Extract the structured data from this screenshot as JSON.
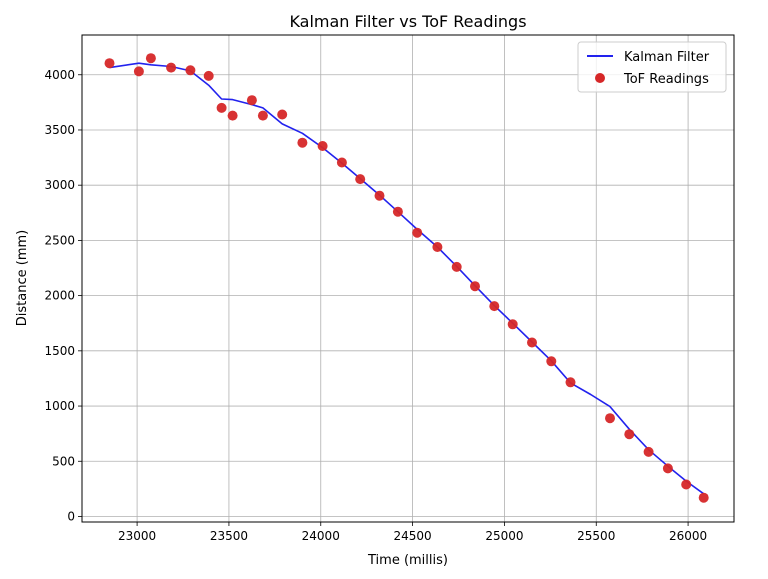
{
  "chart_data": {
    "type": "line",
    "title": "Kalman Filter vs ToF Readings",
    "xlabel": "Time (millis)",
    "ylabel": "Distance (mm)",
    "xlim": [
      22700,
      26250
    ],
    "ylim": [
      -50,
      4360
    ],
    "xticks": [
      23000,
      23500,
      24000,
      24500,
      25000,
      25500,
      26000
    ],
    "yticks": [
      0,
      500,
      1000,
      1500,
      2000,
      2500,
      3000,
      3500,
      4000
    ],
    "grid": true,
    "legend_position": "top-right",
    "series": [
      {
        "name": "Kalman Filter",
        "kind": "line",
        "color": "#2222ee",
        "points": [
          [
            22850,
            4065
          ],
          [
            23010,
            4105
          ],
          [
            23075,
            4090
          ],
          [
            23185,
            4075
          ],
          [
            23290,
            4035
          ],
          [
            23390,
            3905
          ],
          [
            23460,
            3780
          ],
          [
            23520,
            3775
          ],
          [
            23625,
            3730
          ],
          [
            23685,
            3700
          ],
          [
            23790,
            3555
          ],
          [
            23900,
            3470
          ],
          [
            24010,
            3340
          ],
          [
            24115,
            3200
          ],
          [
            24215,
            3060
          ],
          [
            24320,
            2910
          ],
          [
            24420,
            2760
          ],
          [
            24525,
            2600
          ],
          [
            24635,
            2440
          ],
          [
            24740,
            2265
          ],
          [
            24840,
            2090
          ],
          [
            24945,
            1910
          ],
          [
            25045,
            1750
          ],
          [
            25150,
            1580
          ],
          [
            25255,
            1410
          ],
          [
            25360,
            1210
          ],
          [
            25470,
            1105
          ],
          [
            25575,
            995
          ],
          [
            25680,
            790
          ],
          [
            25785,
            605
          ],
          [
            25890,
            455
          ],
          [
            25990,
            320
          ],
          [
            26085,
            205
          ]
        ]
      },
      {
        "name": "ToF Readings",
        "kind": "scatter",
        "color": "#d62728",
        "points": [
          [
            22850,
            4105
          ],
          [
            23010,
            4030
          ],
          [
            23075,
            4150
          ],
          [
            23185,
            4065
          ],
          [
            23290,
            4040
          ],
          [
            23390,
            3990
          ],
          [
            23460,
            3700
          ],
          [
            23520,
            3630
          ],
          [
            23625,
            3770
          ],
          [
            23685,
            3630
          ],
          [
            23790,
            3640
          ],
          [
            23900,
            3385
          ],
          [
            24010,
            3355
          ],
          [
            24115,
            3205
          ],
          [
            24215,
            3055
          ],
          [
            24320,
            2905
          ],
          [
            24420,
            2760
          ],
          [
            24525,
            2570
          ],
          [
            24635,
            2440
          ],
          [
            24740,
            2260
          ],
          [
            24840,
            2085
          ],
          [
            24945,
            1905
          ],
          [
            25045,
            1740
          ],
          [
            25150,
            1575
          ],
          [
            25255,
            1405
          ],
          [
            25360,
            1215
          ],
          [
            25575,
            890
          ],
          [
            25680,
            745
          ],
          [
            25785,
            585
          ],
          [
            25890,
            435
          ],
          [
            25990,
            290
          ],
          [
            26085,
            170
          ]
        ]
      }
    ]
  }
}
